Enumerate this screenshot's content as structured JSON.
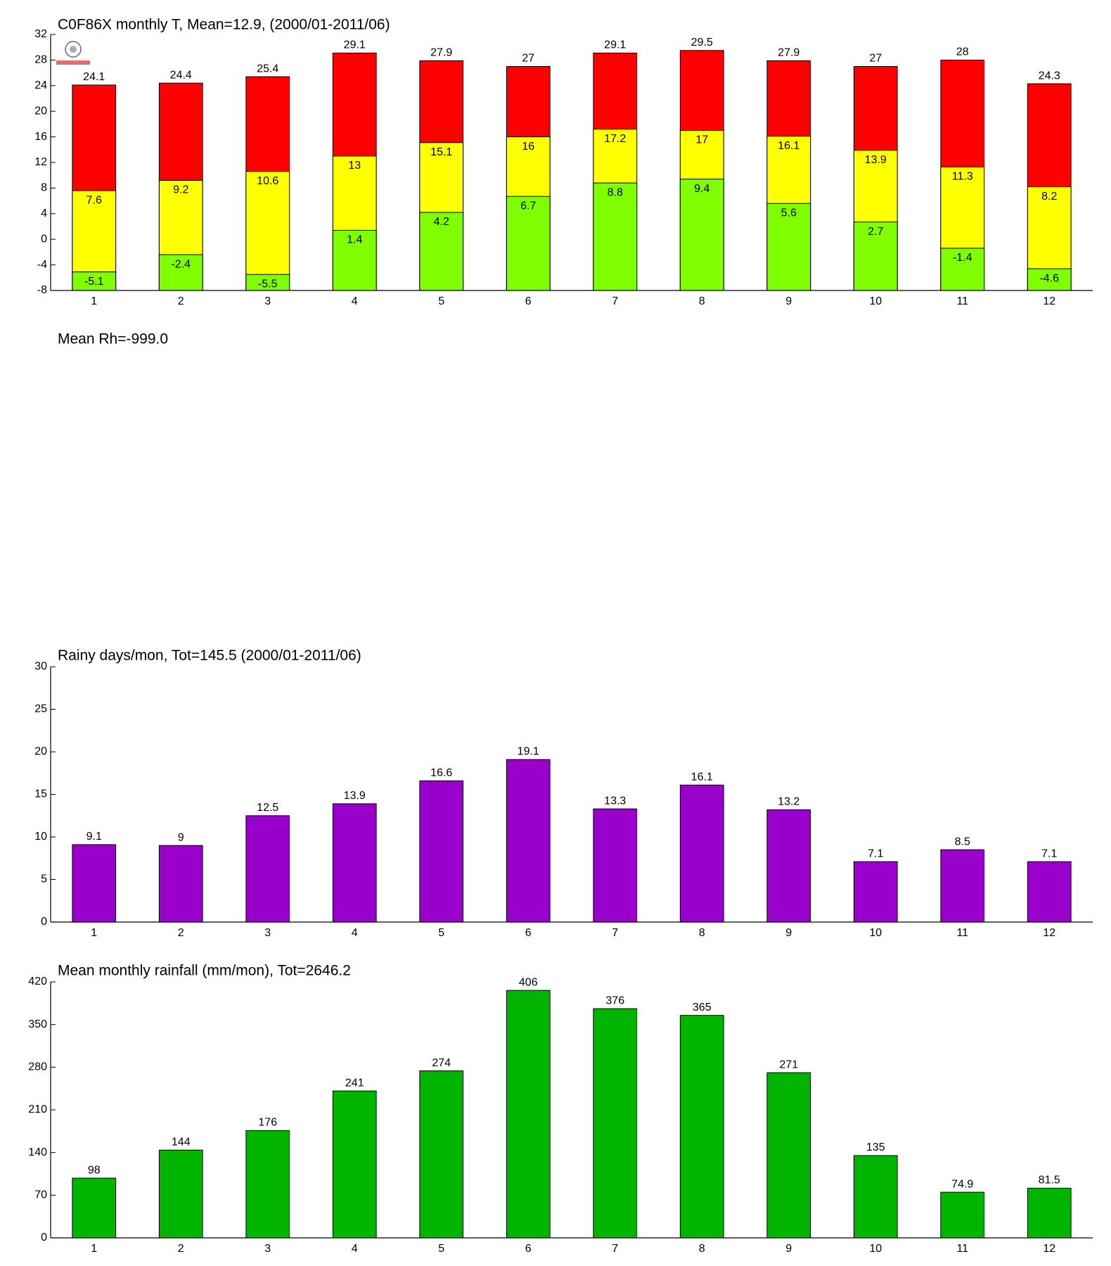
{
  "chart_data": [
    {
      "type": "bar",
      "title": "C0F86X monthly T, Mean=12.9, (2000/01-2011/06)",
      "categories": [
        "1",
        "2",
        "3",
        "4",
        "5",
        "6",
        "7",
        "8",
        "9",
        "10",
        "11",
        "12"
      ],
      "series": [
        {
          "color": "#ff0000",
          "values": [
            24.1,
            24.4,
            25.4,
            29.1,
            27.9,
            27,
            29.1,
            29.5,
            27.9,
            27,
            28,
            24.3
          ]
        },
        {
          "color": "#ffff00",
          "values": [
            7.6,
            9.2,
            10.6,
            13,
            15.1,
            16,
            17.2,
            17,
            16.1,
            13.9,
            11.3,
            8.2
          ]
        },
        {
          "color": "#80ff00",
          "values": [
            -5.1,
            -2.4,
            -5.5,
            1.4,
            4.2,
            6.7,
            8.8,
            9.4,
            5.6,
            2.7,
            -1.4,
            -4.6
          ]
        }
      ],
      "ylim": [
        -8,
        32
      ],
      "yticks": [
        -8,
        -4,
        0,
        4,
        8,
        12,
        16,
        20,
        24,
        28,
        32
      ]
    },
    {
      "type": "empty",
      "title": "Mean Rh=-999.0"
    },
    {
      "type": "bar",
      "title": "Rainy days/mon, Tot=145.5 (2000/01-2011/06)",
      "categories": [
        "1",
        "2",
        "3",
        "4",
        "5",
        "6",
        "7",
        "8",
        "9",
        "10",
        "11",
        "12"
      ],
      "series": [
        {
          "color": "#9900cc",
          "values": [
            9.1,
            9,
            12.5,
            13.9,
            16.6,
            19.1,
            13.3,
            16.1,
            13.2,
            7.1,
            8.5,
            7.1
          ]
        }
      ],
      "ylim": [
        0,
        30
      ],
      "yticks": [
        0,
        5,
        10,
        15,
        20,
        25,
        30
      ]
    },
    {
      "type": "bar",
      "title": "Mean monthly rainfall (mm/mon), Tot=2646.2",
      "categories": [
        "1",
        "2",
        "3",
        "4",
        "5",
        "6",
        "7",
        "8",
        "9",
        "10",
        "11",
        "12"
      ],
      "series": [
        {
          "color": "#00b400",
          "values": [
            98,
            144,
            176,
            241,
            274,
            406,
            376,
            365,
            271,
            135,
            74.9,
            81.5
          ]
        }
      ],
      "ylim": [
        0,
        420
      ],
      "yticks": [
        0,
        70,
        140,
        210,
        280,
        350,
        420
      ]
    }
  ]
}
